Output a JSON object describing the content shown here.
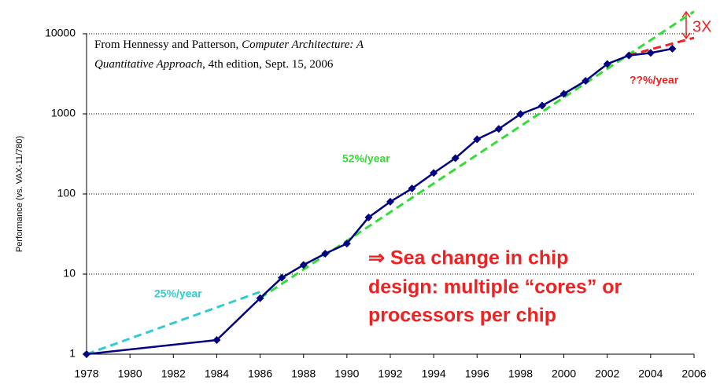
{
  "chart_data": {
    "type": "line",
    "log_y": true,
    "grid": true,
    "y_label": "Performance (vs. VAX-11/780)",
    "source": [
      "From Hennessy and Patterson, ",
      "Computer Architecture: A",
      "Quantitative Approach",
      ", 4th edition, Sept. 15, 2006"
    ],
    "xlim": [
      1978,
      2006
    ],
    "xticks": [
      1978,
      1980,
      1982,
      1984,
      1986,
      1988,
      1990,
      1992,
      1994,
      1996,
      1998,
      2000,
      2002,
      2004,
      2006
    ],
    "ylim": [
      1,
      10000
    ],
    "yticks": [
      1,
      10,
      100,
      1000,
      10000
    ],
    "series": [
      {
        "color": "#000080",
        "markers": true,
        "dashed": false,
        "x": [
          1978,
          1984,
          1986,
          1987,
          1988,
          1989,
          1990,
          1991,
          1992,
          1993,
          1994,
          1995,
          1996,
          1997,
          1998,
          1999,
          2000,
          2001,
          2002,
          2003,
          2004,
          2005
        ],
        "values": [
          1,
          1.5,
          5,
          9,
          13,
          18,
          24,
          51,
          80,
          117,
          183,
          280,
          481,
          649,
          993,
          1267,
          1779,
          2584,
          4195,
          5364,
          5764,
          6505
        ]
      },
      {
        "color": "#33cccc",
        "markers": false,
        "dashed": true,
        "x": [
          1978,
          1986
        ],
        "values": [
          1,
          6
        ]
      },
      {
        "color": "#33dd33",
        "markers": false,
        "dashed": true,
        "x": [
          1986,
          2006
        ],
        "values": [
          5,
          19000
        ]
      },
      {
        "color": "#ee2222",
        "markers": false,
        "dashed": true,
        "x": [
          2003,
          2006
        ],
        "values": [
          5400,
          8900
        ]
      }
    ],
    "annotations": [
      {
        "text": "25%/year",
        "color": "#33cccc"
      },
      {
        "text": "52%/year",
        "color": "#33dd33"
      },
      {
        "text": "??%/year",
        "color": "#ee2222"
      },
      {
        "text": "3X",
        "color": "#ee2222"
      }
    ],
    "message": [
      "⇒ Sea change in chip",
      "design: multiple “cores” or",
      "processors per chip"
    ]
  }
}
